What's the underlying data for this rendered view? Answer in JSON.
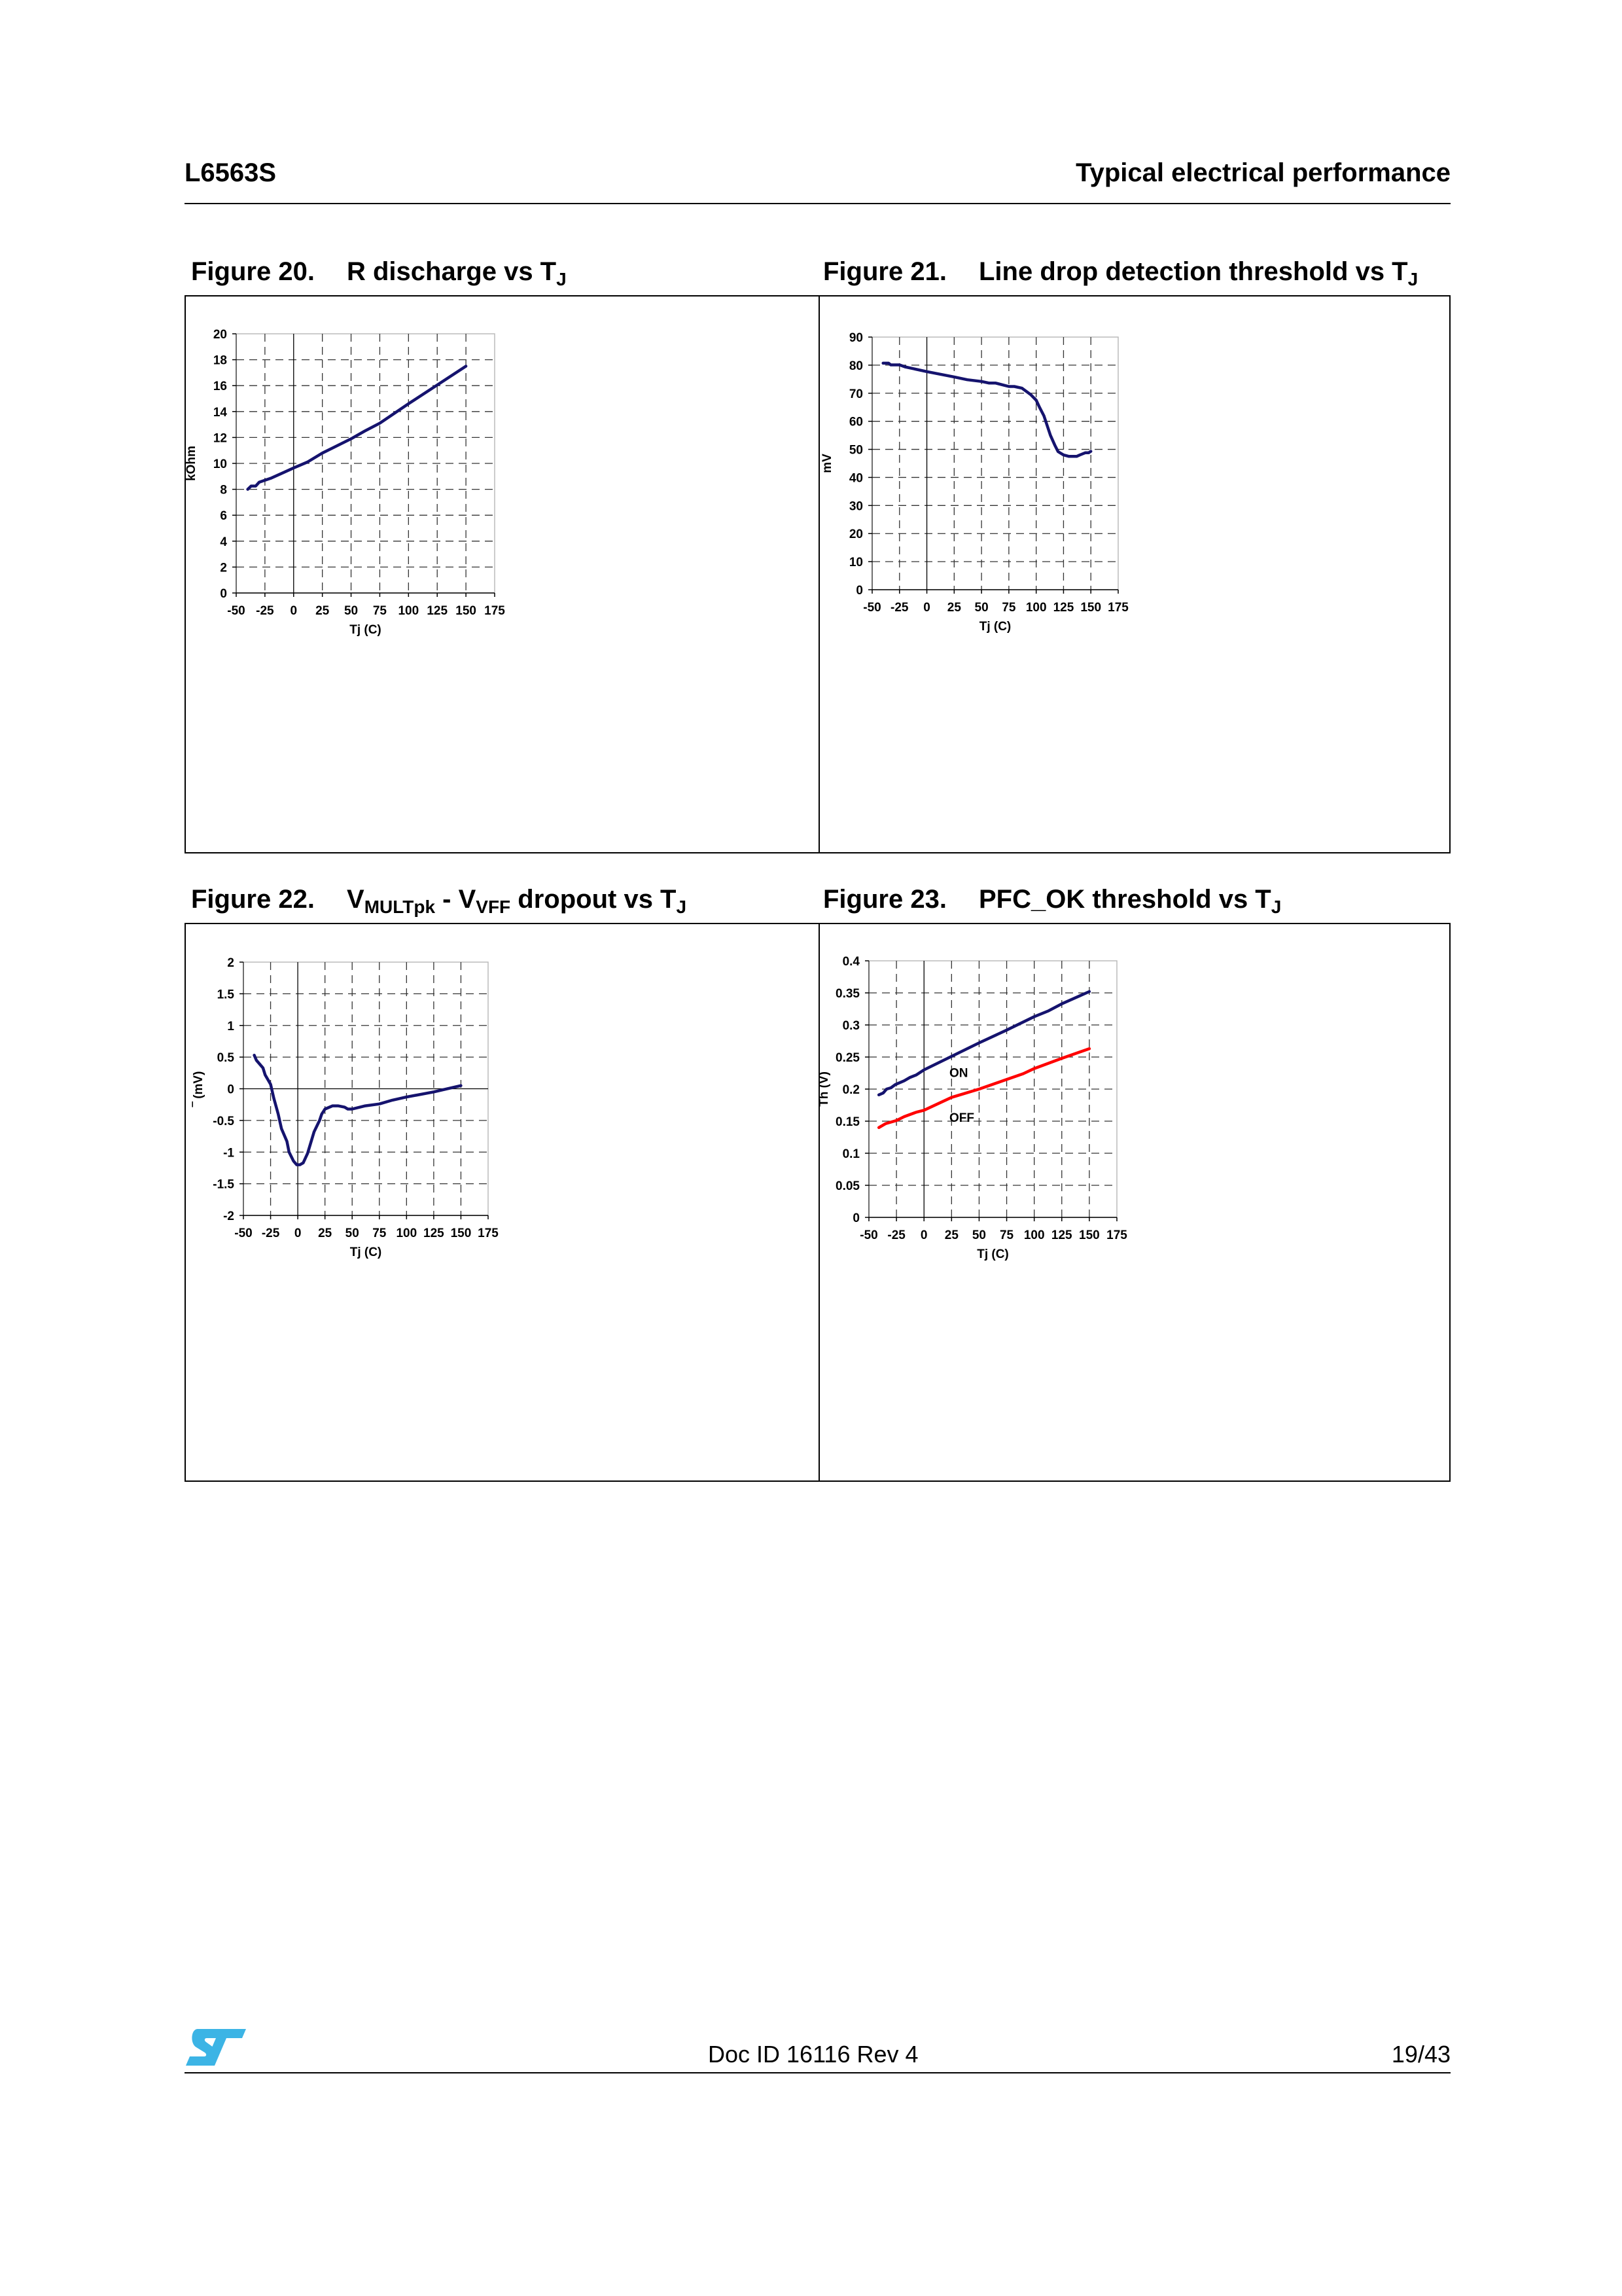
{
  "header": {
    "left": "L6563S",
    "right": "Typical electrical performance"
  },
  "figures": [
    {
      "number": "Figure 20.",
      "title_parts": [
        {
          "t": "R discharge vs T"
        },
        {
          "t": "J",
          "sub": true
        }
      ]
    },
    {
      "number": "Figure 21.",
      "title_parts": [
        {
          "t": "Line drop detection threshold vs T"
        },
        {
          "t": "J",
          "sub": true
        }
      ]
    },
    {
      "number": "Figure 22.",
      "title_parts": [
        {
          "t": "V"
        },
        {
          "t": "MULTpk",
          "sub": true
        },
        {
          "t": " - V"
        },
        {
          "t": "VFF",
          "sub": true
        },
        {
          "t": " dropout vs T"
        },
        {
          "t": "J",
          "sub": true
        }
      ]
    },
    {
      "number": "Figure 23.",
      "title_parts": [
        {
          "t": "PFC_OK threshold vs T"
        },
        {
          "t": "J",
          "sub": true
        }
      ]
    }
  ],
  "chart_data": [
    {
      "type": "line",
      "title": "R discharge vs TJ",
      "xlabel": "Tj (C)",
      "ylabel": "kOhm",
      "xlim": [
        -50,
        175
      ],
      "ylim": [
        0,
        20
      ],
      "xticks": [
        -50,
        -25,
        0,
        25,
        50,
        75,
        100,
        125,
        150,
        175
      ],
      "xtick_labels": [
        "-50",
        "-25",
        "0",
        "25",
        "50",
        "75",
        "100",
        "125",
        "150",
        "175"
      ],
      "yticks": [
        0,
        2,
        4,
        6,
        8,
        10,
        12,
        14,
        16,
        18,
        20
      ],
      "ytick_labels": [
        "0",
        "2",
        "4",
        "6",
        "8",
        "10",
        "12",
        "14",
        "16",
        "18",
        "20"
      ],
      "grid": true,
      "zero_lines": [
        "x"
      ],
      "series": [
        {
          "name": "R discharge",
          "color": "#15136e",
          "points": [
            [
              -40,
              8
            ],
            [
              -37,
              8.25
            ],
            [
              -33,
              8.25
            ],
            [
              -30,
              8.55
            ],
            [
              -25,
              8.7
            ],
            [
              -20,
              8.85
            ],
            [
              -10,
              9.25
            ],
            [
              0,
              9.65
            ],
            [
              12,
              10.1
            ],
            [
              25,
              10.8
            ],
            [
              50,
              11.9
            ],
            [
              62,
              12.5
            ],
            [
              75,
              13.1
            ],
            [
              90,
              14
            ],
            [
              100,
              14.6
            ],
            [
              125,
              16.05
            ],
            [
              150,
              17.5
            ]
          ]
        }
      ],
      "annotations": []
    },
    {
      "type": "line",
      "title": "Line drop detection threshold vs TJ",
      "xlabel": "Tj (C)",
      "ylabel": "mV",
      "xlim": [
        -50,
        175
      ],
      "ylim": [
        0,
        90
      ],
      "xticks": [
        -50,
        -25,
        0,
        25,
        50,
        75,
        100,
        125,
        150,
        175
      ],
      "xtick_labels": [
        "-50",
        "-25",
        "0",
        "25",
        "50",
        "75",
        "100",
        "125",
        "150",
        "175"
      ],
      "yticks": [
        0,
        10,
        20,
        30,
        40,
        50,
        60,
        70,
        80,
        90
      ],
      "ytick_labels": [
        "0",
        "10",
        "20",
        "30",
        "40",
        "50",
        "60",
        "70",
        "80",
        "90"
      ],
      "grid": true,
      "zero_lines": [
        "x"
      ],
      "series": [
        {
          "name": "Line drop threshold",
          "color": "#15136e",
          "points": [
            [
              -40,
              80.7
            ],
            [
              -35,
              80.7
            ],
            [
              -33,
              80.1
            ],
            [
              -25,
              80.1
            ],
            [
              -20,
              79.4
            ],
            [
              0,
              77.7
            ],
            [
              25,
              75.8
            ],
            [
              37,
              74.8
            ],
            [
              50,
              74.2
            ],
            [
              57,
              73.6
            ],
            [
              63,
              73.6
            ],
            [
              75,
              72.4
            ],
            [
              80,
              72.4
            ],
            [
              87,
              71.8
            ],
            [
              95,
              69.5
            ],
            [
              100,
              67.5
            ],
            [
              103,
              65
            ],
            [
              107,
              62
            ],
            [
              110,
              58.5
            ],
            [
              113,
              55
            ],
            [
              117,
              51.5
            ],
            [
              120,
              49.2
            ],
            [
              125,
              48
            ],
            [
              130,
              47.5
            ],
            [
              137,
              47.5
            ],
            [
              140,
              48
            ],
            [
              145,
              48.8
            ],
            [
              148,
              48.8
            ],
            [
              150,
              49.3
            ]
          ]
        }
      ],
      "annotations": []
    },
    {
      "type": "line",
      "title": "VMULTpk - VVFF dropout vs TJ",
      "xlabel": "Tj (C)",
      "ylabel": "‾ (mV)",
      "xlim": [
        -50,
        175
      ],
      "ylim": [
        -2,
        2
      ],
      "xticks": [
        -50,
        -25,
        0,
        25,
        50,
        75,
        100,
        125,
        150,
        175
      ],
      "xtick_labels": [
        "-50",
        "-25",
        "0",
        "25",
        "50",
        "75",
        "100",
        "125",
        "150",
        "175"
      ],
      "yticks": [
        -2,
        -1.5,
        -1,
        -0.5,
        0,
        0.5,
        1,
        1.5,
        2
      ],
      "ytick_labels": [
        "-2",
        "-1.5",
        "-1",
        "-0.5",
        "0",
        "0.5",
        "1",
        "1.5",
        "2"
      ],
      "grid": true,
      "zero_lines": [
        "x",
        "y"
      ],
      "series": [
        {
          "name": "Dropout",
          "color": "#15136e",
          "points": [
            [
              -40,
              0.53
            ],
            [
              -38,
              0.45
            ],
            [
              -32,
              0.33
            ],
            [
              -30,
              0.22
            ],
            [
              -25,
              0.07
            ],
            [
              -22,
              -0.15
            ],
            [
              -18,
              -0.4
            ],
            [
              -15,
              -0.63
            ],
            [
              -10,
              -0.83
            ],
            [
              -8,
              -1
            ],
            [
              -4,
              -1.14
            ],
            [
              -1,
              -1.2
            ],
            [
              2,
              -1.2
            ],
            [
              5,
              -1.17
            ],
            [
              9,
              -1.02
            ],
            [
              15,
              -0.68
            ],
            [
              20,
              -0.5
            ],
            [
              22,
              -0.4
            ],
            [
              25,
              -0.32
            ],
            [
              32,
              -0.27
            ],
            [
              37,
              -0.27
            ],
            [
              43,
              -0.29
            ],
            [
              46,
              -0.32
            ],
            [
              50,
              -0.32
            ],
            [
              62,
              -0.27
            ],
            [
              75,
              -0.24
            ],
            [
              87,
              -0.18
            ],
            [
              100,
              -0.13
            ],
            [
              125,
              -0.05
            ],
            [
              150,
              0.05
            ]
          ]
        }
      ],
      "annotations": []
    },
    {
      "type": "line",
      "title": "PFC_OK threshold vs TJ",
      "xlabel": "Tj (C)",
      "ylabel": "Th (V)",
      "xlim": [
        -50,
        175
      ],
      "ylim": [
        0,
        0.4
      ],
      "xticks": [
        -50,
        -25,
        0,
        25,
        50,
        75,
        100,
        125,
        150,
        175
      ],
      "xtick_labels": [
        "-50",
        "-25",
        "0",
        "25",
        "50",
        "75",
        "100",
        "125",
        "150",
        "175"
      ],
      "yticks": [
        0,
        0.05,
        0.1,
        0.15,
        0.2,
        0.25,
        0.3,
        0.35,
        0.4
      ],
      "ytick_labels": [
        "0",
        "0.05",
        "0.1",
        "0.15",
        "0.2",
        "0.25",
        "0.3",
        "0.35",
        "0.4"
      ],
      "grid": true,
      "zero_lines": [
        "x"
      ],
      "series": [
        {
          "name": "ON",
          "color": "#15136e",
          "points": [
            [
              -41,
              0.191
            ],
            [
              -37,
              0.194
            ],
            [
              -34,
              0.2
            ],
            [
              -30,
              0.202
            ],
            [
              -26,
              0.207
            ],
            [
              -18,
              0.213
            ],
            [
              -13,
              0.218
            ],
            [
              -7,
              0.222
            ],
            [
              0,
              0.23
            ],
            [
              25,
              0.251
            ],
            [
              50,
              0.272
            ],
            [
              75,
              0.292
            ],
            [
              100,
              0.313
            ],
            [
              113,
              0.322
            ],
            [
              125,
              0.333
            ],
            [
              150,
              0.352
            ]
          ]
        },
        {
          "name": "OFF",
          "color": "#ff0000",
          "points": [
            [
              -41,
              0.14
            ],
            [
              -35,
              0.146
            ],
            [
              -25,
              0.151
            ],
            [
              -18,
              0.157
            ],
            [
              -7,
              0.164
            ],
            [
              0,
              0.167
            ],
            [
              25,
              0.187
            ],
            [
              50,
              0.2
            ],
            [
              75,
              0.215
            ],
            [
              90,
              0.224
            ],
            [
              100,
              0.232
            ],
            [
              125,
              0.248
            ],
            [
              150,
              0.263
            ]
          ]
        }
      ],
      "annotations": [
        {
          "text": "ON",
          "x": 23,
          "y": 0.219
        },
        {
          "text": "OFF",
          "x": 23,
          "y": 0.149
        }
      ]
    }
  ],
  "footer": {
    "logo_text": "ST",
    "doc_id": "Doc ID 16116 Rev 4",
    "page": "19/43"
  }
}
